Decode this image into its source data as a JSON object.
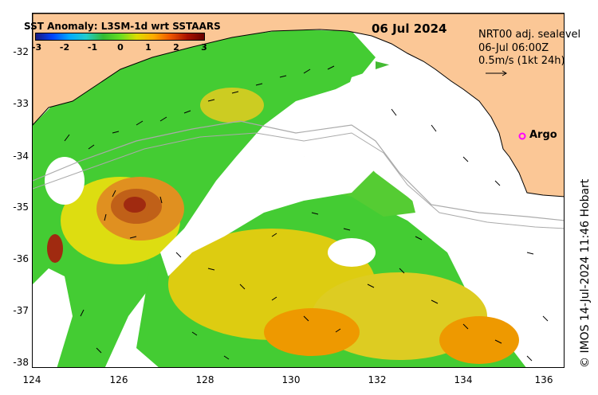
{
  "map": {
    "title": "SST Anomaly: L3SM-1d wrt SSTAARS",
    "date": "06 Jul 2024",
    "legend": {
      "line1": "NRT00 adj. sealevel",
      "line2": "06-Jul 06:00Z",
      "line3": "0.5m/s (1kt 24h)"
    },
    "argo_label": "Argo",
    "credit": "© IMOS 14-Jul-2024 11:46 Hobart",
    "colorbar_ticks": [
      "-3",
      "-2",
      "-1",
      "0",
      "1",
      "2",
      "3"
    ],
    "x_ticks": [
      "124",
      "126",
      "128",
      "130",
      "132",
      "134",
      "136"
    ],
    "y_ticks": [
      "-32",
      "-33",
      "-34",
      "-35",
      "-36",
      "-37",
      "-38"
    ],
    "colors": {
      "land": "#fbc796",
      "ocean_missing": "#ffffff",
      "anom_green": "#33cc33",
      "anom_yellow": "#dddd11",
      "anom_orange": "#ee9900",
      "anom_red": "#a02a10",
      "argo_marker": "#ff00ff"
    }
  }
}
